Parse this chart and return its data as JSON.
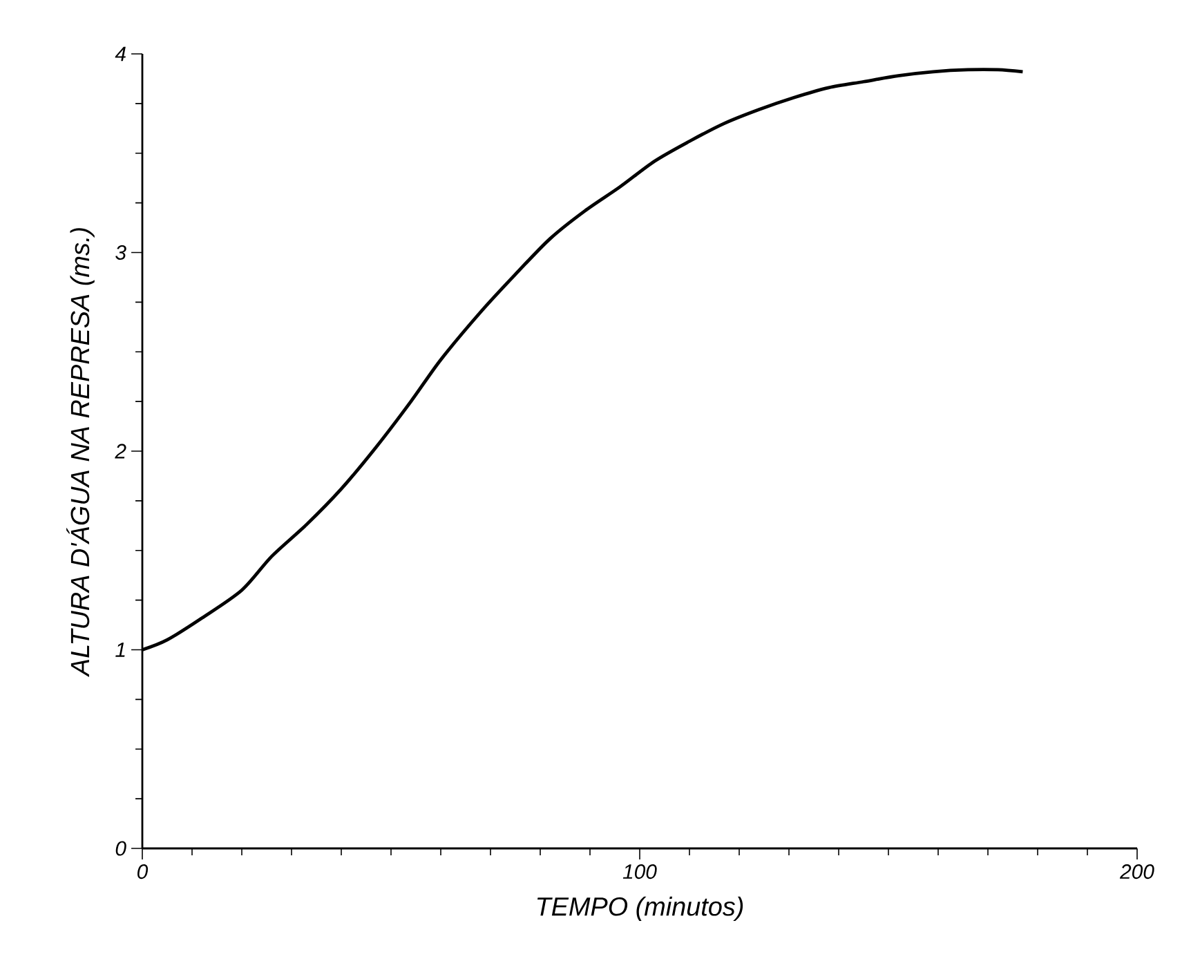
{
  "chart_data": {
    "type": "line",
    "xlabel": "TEMPO  (minutos)",
    "ylabel": "ALTURA D'ÁGUA NA REPRESA  (ms.)",
    "x": [
      0,
      5,
      12,
      20,
      26,
      33,
      40,
      47,
      54,
      60,
      68,
      75,
      82,
      89,
      96,
      103,
      110,
      117,
      124,
      131,
      138,
      145,
      152,
      159,
      166,
      172,
      177
    ],
    "values": [
      1.0,
      1.05,
      1.16,
      1.3,
      1.47,
      1.63,
      1.81,
      2.02,
      2.25,
      2.46,
      2.7,
      2.89,
      3.07,
      3.21,
      3.33,
      3.46,
      3.56,
      3.65,
      3.72,
      3.78,
      3.83,
      3.86,
      3.89,
      3.91,
      3.92,
      3.92,
      3.91
    ],
    "color": "#000000",
    "marker": "none",
    "line_style": "solid",
    "xlim": [
      0,
      200
    ],
    "ylim": [
      0,
      4
    ],
    "xticks": [
      0,
      100,
      200
    ],
    "yticks": [
      0,
      1,
      2,
      3,
      4
    ],
    "grid": false
  }
}
